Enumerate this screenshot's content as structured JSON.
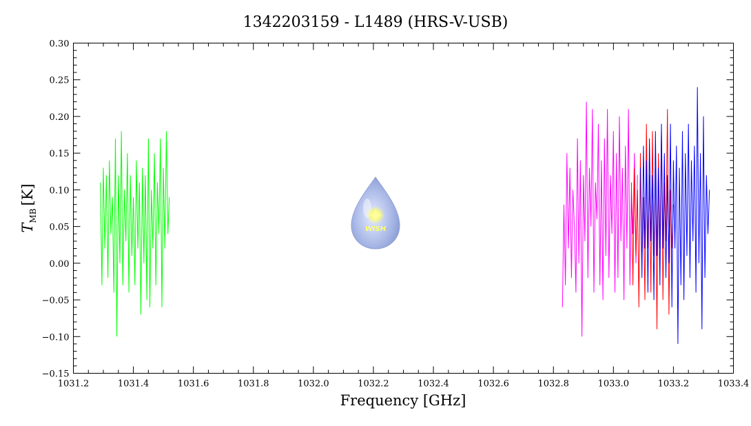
{
  "chart_data": {
    "type": "line",
    "title": "1342203159 - L1489 (HRS-V-USB)",
    "xlabel": "Frequency [GHz]",
    "ylabel_main": "T",
    "ylabel_sub": "MB",
    "ylabel_unit": "[K]",
    "xlim": [
      1031.2,
      1033.4
    ],
    "ylim": [
      -0.15,
      0.3
    ],
    "xticks": [
      "1031.2",
      "1031.4",
      "1031.6",
      "1031.8",
      "1032.0",
      "1032.2",
      "1032.4",
      "1032.6",
      "1032.8",
      "1033.0",
      "1033.2",
      "1033.4"
    ],
    "yticks": [
      "−0.15",
      "−0.10",
      "−0.05",
      "0.00",
      "0.05",
      "0.10",
      "0.15",
      "0.20",
      "0.25",
      "0.30"
    ],
    "grid": false,
    "logo_text": "WISH",
    "series": [
      {
        "color": "#00ff00",
        "x": [
          1031.29,
          1031.295,
          1031.3,
          1031.305,
          1031.31,
          1031.315,
          1031.32,
          1031.325,
          1031.33,
          1031.335,
          1031.34,
          1031.345,
          1031.35,
          1031.355,
          1031.36,
          1031.365,
          1031.37,
          1031.375,
          1031.38,
          1031.385,
          1031.39,
          1031.395,
          1031.4,
          1031.405,
          1031.41,
          1031.415,
          1031.42,
          1031.425,
          1031.43,
          1031.435,
          1031.44,
          1031.445,
          1031.45,
          1031.455,
          1031.46,
          1031.465,
          1031.47,
          1031.475,
          1031.48,
          1031.485,
          1031.49,
          1031.495,
          1031.5,
          1031.505,
          1031.51,
          1031.515,
          1031.52
        ],
        "y": [
          0.11,
          -0.03,
          0.13,
          0.02,
          0.12,
          -0.02,
          0.14,
          0.04,
          0.09,
          -0.04,
          0.17,
          -0.1,
          0.12,
          0.0,
          0.18,
          -0.03,
          0.1,
          0.03,
          0.15,
          -0.04,
          0.12,
          0.01,
          0.09,
          -0.03,
          0.14,
          0.02,
          0.11,
          -0.07,
          0.13,
          0.0,
          0.12,
          -0.05,
          0.17,
          -0.06,
          0.1,
          0.02,
          0.15,
          -0.03,
          0.11,
          0.04,
          0.17,
          -0.06,
          0.13,
          0.02,
          0.18,
          0.04,
          0.09
        ]
      },
      {
        "color": "#ff00ff",
        "x": [
          1032.83,
          1032.835,
          1032.84,
          1032.845,
          1032.85,
          1032.855,
          1032.86,
          1032.865,
          1032.87,
          1032.875,
          1032.88,
          1032.885,
          1032.89,
          1032.895,
          1032.9,
          1032.905,
          1032.91,
          1032.915,
          1032.92,
          1032.925,
          1032.93,
          1032.935,
          1032.94,
          1032.945,
          1032.95,
          1032.955,
          1032.96,
          1032.965,
          1032.97,
          1032.975,
          1032.98,
          1032.985,
          1032.99,
          1032.995,
          1033.0,
          1033.005,
          1033.01,
          1033.015,
          1033.02,
          1033.025,
          1033.03,
          1033.035,
          1033.04,
          1033.045,
          1033.05,
          1033.055,
          1033.06,
          1033.065,
          1033.07,
          1033.075,
          1033.08
        ],
        "y": [
          -0.06,
          0.08,
          -0.03,
          0.15,
          0.02,
          0.13,
          -0.02,
          0.1,
          0.05,
          -0.04,
          0.17,
          0.0,
          0.14,
          -0.1,
          0.12,
          0.03,
          0.22,
          -0.02,
          0.13,
          0.05,
          0.21,
          -0.04,
          0.11,
          0.06,
          0.19,
          -0.03,
          0.14,
          -0.05,
          0.17,
          0.01,
          0.21,
          -0.02,
          0.12,
          0.04,
          0.18,
          -0.04,
          0.15,
          -0.02,
          0.2,
          0.03,
          0.13,
          -0.05,
          0.16,
          0.02,
          0.21,
          -0.03,
          0.1,
          0.04,
          0.15,
          0.0,
          0.12
        ]
      },
      {
        "color": "#ff0000",
        "x": [
          1033.06,
          1033.065,
          1033.07,
          1033.075,
          1033.08,
          1033.085,
          1033.09,
          1033.095,
          1033.1,
          1033.105,
          1033.11,
          1033.115,
          1033.12,
          1033.125,
          1033.13,
          1033.135,
          1033.14,
          1033.145,
          1033.15,
          1033.155,
          1033.16,
          1033.165,
          1033.17,
          1033.175,
          1033.18,
          1033.185,
          1033.19,
          1033.195,
          1033.2
        ],
        "y": [
          0.11,
          -0.03,
          0.13,
          0.01,
          0.1,
          -0.06,
          0.15,
          0.0,
          0.09,
          -0.05,
          0.19,
          0.02,
          0.12,
          -0.04,
          0.18,
          0.01,
          0.13,
          -0.09,
          0.15,
          0.02,
          0.18,
          -0.05,
          0.11,
          0.03,
          0.21,
          -0.07,
          0.1,
          0.02,
          0.08
        ]
      },
      {
        "color": "#0000ff",
        "x": [
          1033.09,
          1033.095,
          1033.1,
          1033.105,
          1033.11,
          1033.115,
          1033.12,
          1033.125,
          1033.13,
          1033.135,
          1033.14,
          1033.145,
          1033.15,
          1033.155,
          1033.16,
          1033.165,
          1033.17,
          1033.175,
          1033.18,
          1033.185,
          1033.19,
          1033.195,
          1033.2,
          1033.205,
          1033.21,
          1033.215,
          1033.22,
          1033.225,
          1033.23,
          1033.235,
          1033.24,
          1033.245,
          1033.25,
          1033.255,
          1033.26,
          1033.265,
          1033.27,
          1033.275,
          1033.28,
          1033.285,
          1033.29,
          1033.295,
          1033.3,
          1033.305,
          1033.31,
          1033.315,
          1033.32
        ],
        "y": [
          0.13,
          -0.02,
          0.16,
          0.02,
          0.14,
          -0.04,
          0.17,
          0.03,
          0.12,
          -0.05,
          0.18,
          0.01,
          0.13,
          -0.03,
          0.19,
          0.02,
          0.15,
          -0.02,
          0.12,
          0.0,
          0.19,
          -0.06,
          0.14,
          0.02,
          0.16,
          -0.11,
          0.13,
          -0.03,
          0.18,
          -0.05,
          0.15,
          0.01,
          0.19,
          -0.02,
          0.14,
          0.03,
          0.16,
          -0.04,
          0.24,
          0.0,
          0.15,
          -0.09,
          0.2,
          -0.02,
          0.12,
          0.04,
          0.1
        ]
      }
    ]
  }
}
